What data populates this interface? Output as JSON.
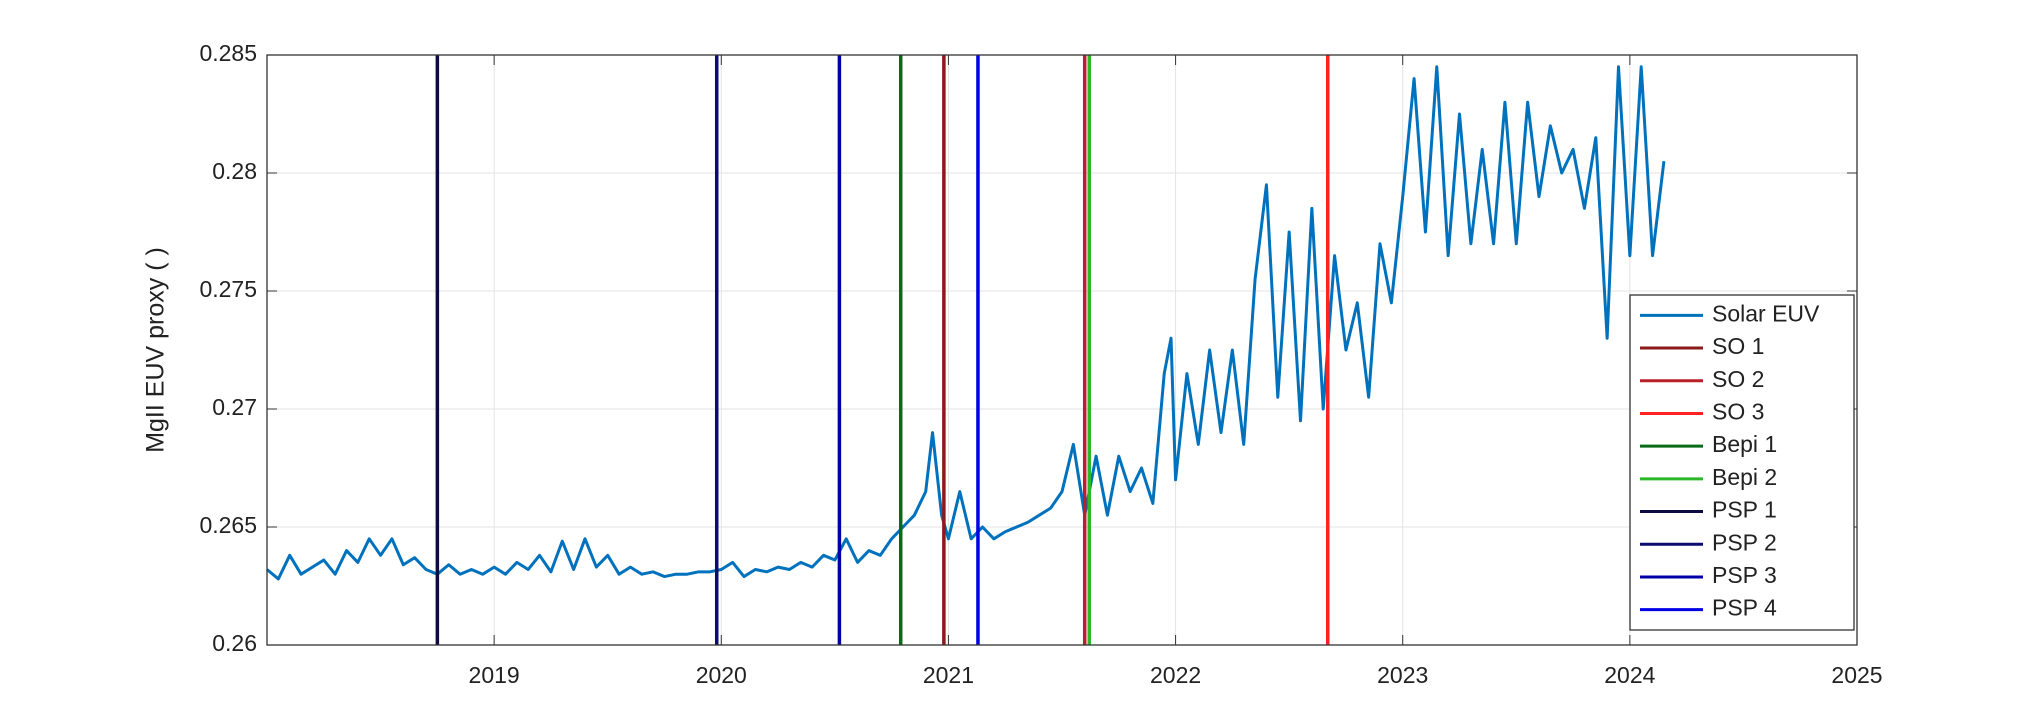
{
  "chart_data": {
    "type": "line",
    "ylabel": "MgII EUV proxy ( )",
    "xlim": [
      2018,
      2025
    ],
    "xticks": [
      2019,
      2020,
      2021,
      2022,
      2023,
      2024,
      2025
    ],
    "ylim": [
      0.26,
      0.285
    ],
    "yticks": [
      0.26,
      0.265,
      0.27,
      0.275,
      0.28,
      0.285
    ],
    "grid": true,
    "legend": "lower right",
    "series": [
      {
        "name": "Solar EUV",
        "color": "#0072bd",
        "x": [
          2018.0,
          2018.05,
          2018.1,
          2018.15,
          2018.2,
          2018.25,
          2018.3,
          2018.35,
          2018.4,
          2018.45,
          2018.5,
          2018.55,
          2018.6,
          2018.65,
          2018.7,
          2018.75,
          2018.8,
          2018.85,
          2018.9,
          2018.95,
          2019.0,
          2019.05,
          2019.1,
          2019.15,
          2019.2,
          2019.25,
          2019.3,
          2019.35,
          2019.4,
          2019.45,
          2019.5,
          2019.55,
          2019.6,
          2019.65,
          2019.7,
          2019.75,
          2019.8,
          2019.85,
          2019.9,
          2019.95,
          2020.0,
          2020.05,
          2020.1,
          2020.15,
          2020.2,
          2020.25,
          2020.3,
          2020.35,
          2020.4,
          2020.45,
          2020.5,
          2020.55,
          2020.6,
          2020.65,
          2020.7,
          2020.75,
          2020.8,
          2020.85,
          2020.9,
          2020.93,
          2020.97,
          2021.0,
          2021.05,
          2021.1,
          2021.15,
          2021.2,
          2021.25,
          2021.3,
          2021.35,
          2021.4,
          2021.45,
          2021.5,
          2021.55,
          2021.6,
          2021.65,
          2021.7,
          2021.75,
          2021.8,
          2021.85,
          2021.9,
          2021.95,
          2021.98,
          2022.0,
          2022.05,
          2022.1,
          2022.15,
          2022.2,
          2022.25,
          2022.3,
          2022.35,
          2022.4,
          2022.45,
          2022.5,
          2022.55,
          2022.6,
          2022.65,
          2022.7,
          2022.75,
          2022.8,
          2022.85,
          2022.9,
          2022.95,
          2023.0,
          2023.05,
          2023.1,
          2023.15,
          2023.2,
          2023.25,
          2023.3,
          2023.35,
          2023.4,
          2023.45,
          2023.5,
          2023.55,
          2023.6,
          2023.65,
          2023.7,
          2023.75,
          2023.8,
          2023.85,
          2023.9,
          2023.95,
          2024.0,
          2024.05,
          2024.1,
          2024.15
        ],
        "values": [
          0.2632,
          0.2628,
          0.2638,
          0.263,
          0.2633,
          0.2636,
          0.263,
          0.264,
          0.2635,
          0.2645,
          0.2638,
          0.2645,
          0.2634,
          0.2637,
          0.2632,
          0.263,
          0.2634,
          0.263,
          0.2632,
          0.263,
          0.2633,
          0.263,
          0.2635,
          0.2632,
          0.2638,
          0.2631,
          0.2644,
          0.2632,
          0.2645,
          0.2633,
          0.2638,
          0.263,
          0.2633,
          0.263,
          0.2631,
          0.2629,
          0.263,
          0.263,
          0.2631,
          0.2631,
          0.2632,
          0.2635,
          0.2629,
          0.2632,
          0.2631,
          0.2633,
          0.2632,
          0.2635,
          0.2633,
          0.2638,
          0.2636,
          0.2645,
          0.2635,
          0.264,
          0.2638,
          0.2645,
          0.265,
          0.2655,
          0.2665,
          0.269,
          0.2655,
          0.2645,
          0.2665,
          0.2645,
          0.265,
          0.2645,
          0.2648,
          0.265,
          0.2652,
          0.2655,
          0.2658,
          0.2665,
          0.2685,
          0.2655,
          0.268,
          0.2655,
          0.268,
          0.2665,
          0.2675,
          0.266,
          0.2715,
          0.273,
          0.267,
          0.2715,
          0.2685,
          0.2725,
          0.269,
          0.2725,
          0.2685,
          0.2755,
          0.2795,
          0.2705,
          0.2775,
          0.2695,
          0.2785,
          0.27,
          0.2765,
          0.2725,
          0.2745,
          0.2705,
          0.277,
          0.2745,
          0.279,
          0.284,
          0.2775,
          0.2845,
          0.2765,
          0.2825,
          0.277,
          0.281,
          0.277,
          0.283,
          0.277,
          0.283,
          0.279,
          0.282,
          0.28,
          0.281,
          0.2785,
          0.2815,
          0.273,
          0.2845,
          0.2765,
          0.2845,
          0.2765,
          0.2805
        ]
      }
    ],
    "vlines": [
      {
        "name": "SO 1",
        "color": "#8b1a1a",
        "x": 2020.98
      },
      {
        "name": "SO 2",
        "color": "#b8202a",
        "x": 2021.6
      },
      {
        "name": "SO 3",
        "color": "#ff2222",
        "x": 2022.67
      },
      {
        "name": "Bepi 1",
        "color": "#0a6a1a",
        "x": 2020.79
      },
      {
        "name": "Bepi 2",
        "color": "#2ab82a",
        "x": 2021.62
      },
      {
        "name": "PSP 1",
        "color": "#0c0c40",
        "x": 2018.75
      },
      {
        "name": "PSP 2",
        "color": "#0c0c70",
        "x": 2019.98
      },
      {
        "name": "PSP 3",
        "color": "#0000a8",
        "x": 2020.52
      },
      {
        "name": "PSP 4",
        "color": "#0000e8",
        "x": 2021.13
      }
    ]
  }
}
